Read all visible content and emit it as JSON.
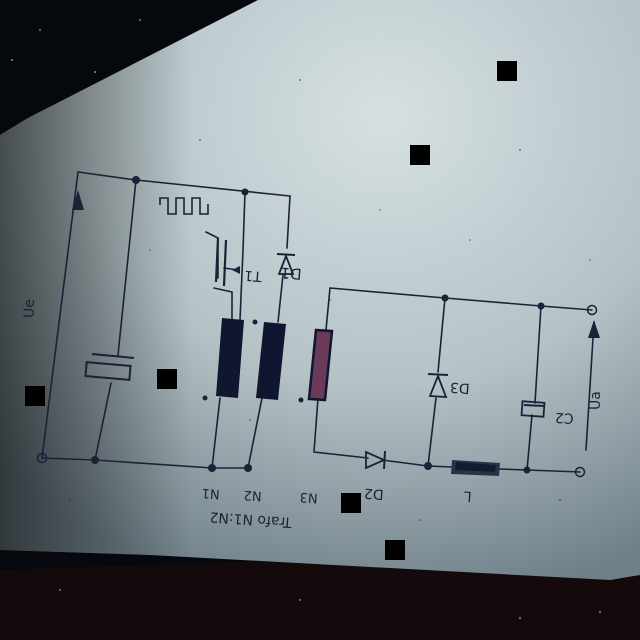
{
  "diagram": {
    "title": "Trafo N1:N2",
    "input_voltage_label": "Ue",
    "output_voltage_label": "Ua",
    "switch_label": "T1",
    "diodes": [
      "D1",
      "D2",
      "D3"
    ],
    "output_capacitor_label": "C2",
    "inductor_label": "L",
    "winding_labels": [
      "N1",
      "N2",
      "N3"
    ]
  },
  "colors": {
    "paper": "#c8d4d8",
    "ink": "#1b2238",
    "core_dark": "#101630",
    "core_red": "#6a3a5a",
    "inductor": "#2a3248"
  }
}
